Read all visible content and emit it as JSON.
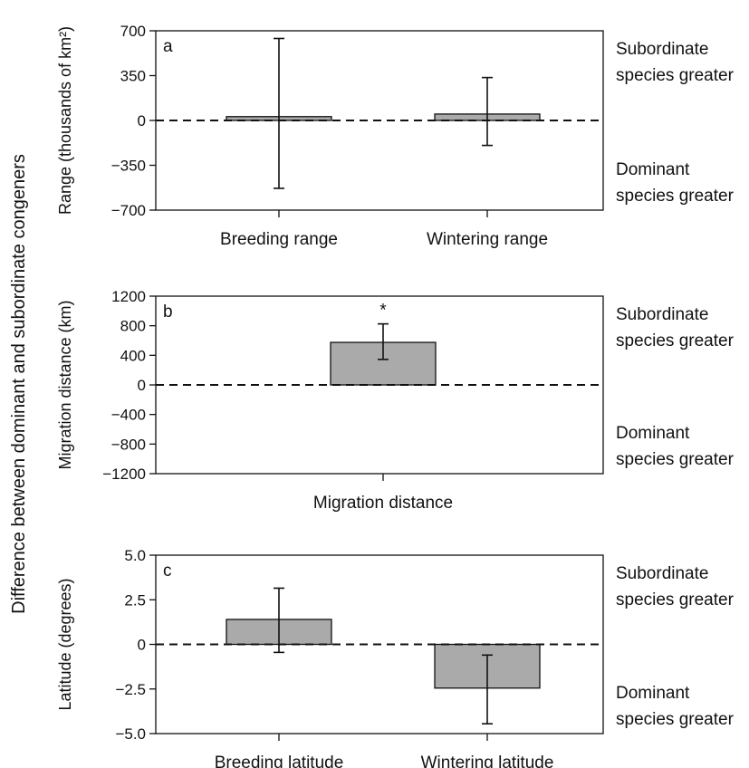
{
  "figure": {
    "shared_ylabel": "Difference between dominant and subordinate congeners"
  },
  "chart_data": [
    {
      "type": "bar",
      "panel_label": "a",
      "ylabel": "Range (thousands of km²)",
      "ylim": [
        -700,
        700
      ],
      "yticks": [
        700,
        350,
        0,
        -350,
        -700
      ],
      "ytick_labels": [
        "700",
        "350",
        "0",
        "−350",
        "−700"
      ],
      "categories": [
        "Breeding range",
        "Wintering range"
      ],
      "values": [
        30,
        50
      ],
      "error_low": [
        -530,
        -195
      ],
      "error_high": [
        640,
        335
      ],
      "annotations": [],
      "upper_note": [
        "Subordinate",
        "species greater"
      ],
      "lower_note": [
        "Dominant",
        "species greater"
      ],
      "bar_color": "#aaaaaa",
      "reference_line": 0
    },
    {
      "type": "bar",
      "panel_label": "b",
      "ylabel": "Migration distance (km)",
      "ylim": [
        -1200,
        1200
      ],
      "yticks": [
        1200,
        800,
        400,
        0,
        -400,
        -800,
        -1200
      ],
      "ytick_labels": [
        "1200",
        "800",
        "400",
        "0",
        "−400",
        "−800",
        "−1200"
      ],
      "categories": [
        "Migration distance"
      ],
      "values": [
        575
      ],
      "error_low": [
        345
      ],
      "error_high": [
        825
      ],
      "annotations": [
        "*"
      ],
      "upper_note": [
        "Subordinate",
        "species greater"
      ],
      "lower_note": [
        "Dominant",
        "species greater"
      ],
      "bar_color": "#aaaaaa",
      "reference_line": 0
    },
    {
      "type": "bar",
      "panel_label": "c",
      "ylabel": "Latitude (degrees)",
      "ylim": [
        -5.0,
        5.0
      ],
      "yticks": [
        5.0,
        2.5,
        0,
        -2.5,
        -5.0
      ],
      "ytick_labels": [
        "5.0",
        "2.5",
        "0",
        "−2.5",
        "−5.0"
      ],
      "categories": [
        "Breeding latitude",
        "Wintering latitude"
      ],
      "values": [
        1.4,
        -2.45
      ],
      "error_low": [
        -0.45,
        -4.45
      ],
      "error_high": [
        3.15,
        -0.6
      ],
      "annotations": [],
      "upper_note": [
        "Subordinate",
        "species greater"
      ],
      "lower_note": [
        "Dominant",
        "species greater"
      ],
      "bar_color": "#aaaaaa",
      "reference_line": 0
    }
  ]
}
